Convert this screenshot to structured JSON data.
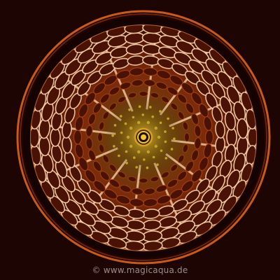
{
  "image": {
    "subject": "cymatics-water-sound-pattern",
    "watermark_text": "© www.magicaqua.de"
  },
  "palette": {
    "background": "#1c0502",
    "rim": "#d2641e",
    "pattern_dark": "#4a1205",
    "pattern_mid": "#b54a14",
    "pattern_bright": "#ffd9b0",
    "center_gold": "#c8a12a",
    "center_core": "#f5c431",
    "watermark_color": "#9b8d86"
  }
}
